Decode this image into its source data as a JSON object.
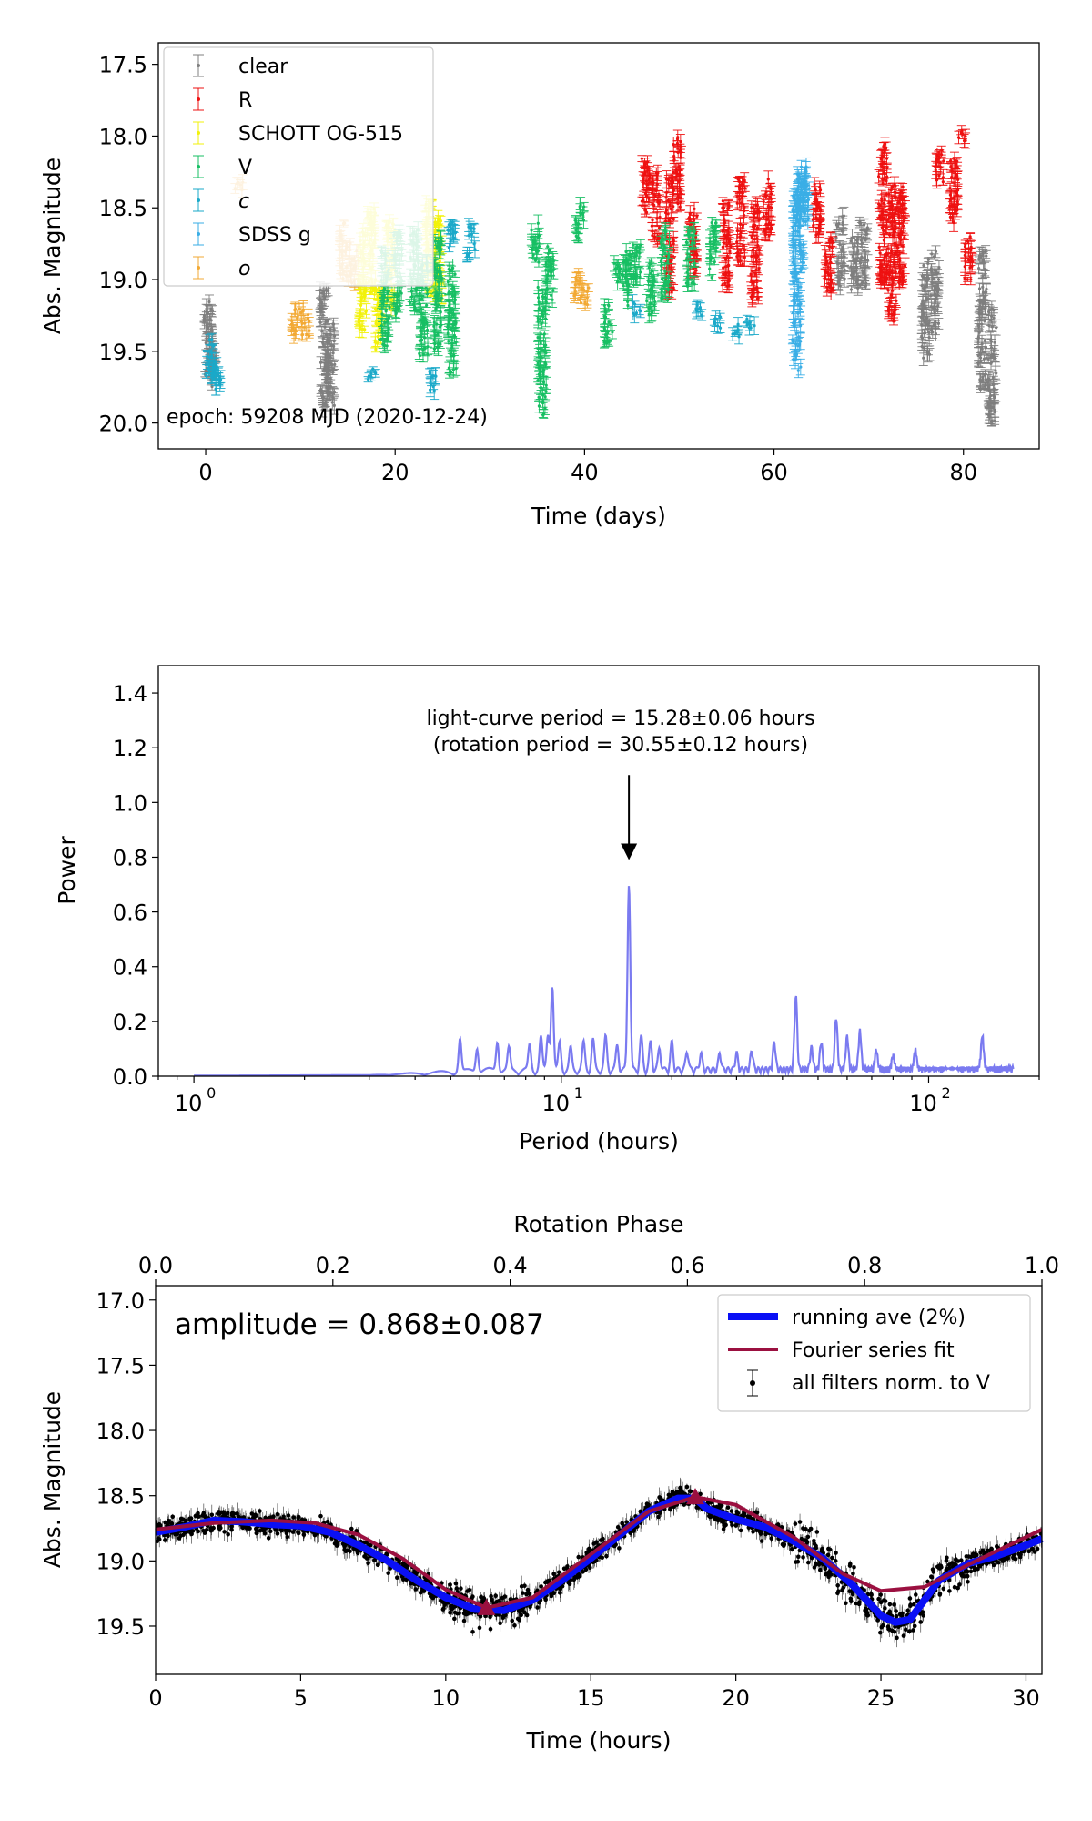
{
  "colors": {
    "clear": "#7f7f7f",
    "R": "#ee1111",
    "SCHOTT OG-515": "#f2f20a",
    "V": "#17bf63",
    "c": "#1aa9c9",
    "SDSS g": "#3aaee6",
    "o": "#f2a934",
    "periodogram": "#7a7af0",
    "running_ave": "#0a10f5",
    "fourier_fit": "#9b1040",
    "data": "#000000"
  },
  "chart_data": [
    {
      "type": "scatter",
      "xlabel": "Time (days)",
      "ylabel": "Abs. Magnitude",
      "xlim": [
        -5,
        88
      ],
      "ylim": [
        20.18,
        17.35
      ],
      "y_inverted": true,
      "xticks": [
        0,
        20,
        40,
        60,
        80
      ],
      "yticks": [
        17.5,
        18.0,
        18.5,
        19.0,
        19.5,
        20.0
      ],
      "annotation": "epoch: 59208 MJD (2020-12-24)",
      "legend_position": "upper-left",
      "series": [
        {
          "name": "clear",
          "clusters": [
            [
              0.3,
              19.4,
              0.3
            ],
            [
              0.8,
              19.6,
              0.15
            ],
            [
              12.5,
              19.5,
              0.45
            ],
            [
              13.2,
              19.6,
              0.3
            ],
            [
              67,
              18.8,
              0.25
            ],
            [
              68.5,
              18.9,
              0.2
            ],
            [
              69.5,
              18.85,
              0.25
            ],
            [
              76,
              19.2,
              0.35
            ],
            [
              77,
              19.1,
              0.3
            ],
            [
              82,
              19.3,
              0.5
            ],
            [
              83,
              19.6,
              0.4
            ]
          ]
        },
        {
          "name": "R",
          "clusters": [
            [
              46.5,
              18.35,
              0.2
            ],
            [
              47.5,
              18.5,
              0.25
            ],
            [
              49,
              18.7,
              0.4
            ],
            [
              49.8,
              18.25,
              0.25
            ],
            [
              51.5,
              18.75,
              0.25
            ],
            [
              55,
              18.75,
              0.3
            ],
            [
              56.5,
              18.6,
              0.3
            ],
            [
              58,
              18.8,
              0.35
            ],
            [
              59.3,
              18.5,
              0.2
            ],
            [
              64.5,
              18.5,
              0.2
            ],
            [
              65.8,
              18.9,
              0.2
            ],
            [
              71.5,
              18.55,
              0.5
            ],
            [
              72.5,
              18.8,
              0.5
            ],
            [
              73.5,
              18.7,
              0.35
            ],
            [
              77.5,
              18.2,
              0.12
            ],
            [
              79,
              18.4,
              0.25
            ],
            [
              80.5,
              18.85,
              0.15
            ],
            [
              79.8,
              18.0,
              0.05
            ]
          ]
        },
        {
          "name": "SCHOTT OG-515",
          "clusters": [
            [
              16.5,
              19.0,
              0.35
            ],
            [
              17.5,
              18.8,
              0.3
            ],
            [
              18.3,
              19.25,
              0.25
            ],
            [
              19.5,
              18.9,
              0.3
            ],
            [
              23.5,
              18.8,
              0.35
            ],
            [
              24.5,
              18.85,
              0.3
            ]
          ]
        },
        {
          "name": "V",
          "clusters": [
            [
              19,
              19.15,
              0.35
            ],
            [
              20.3,
              18.95,
              0.3
            ],
            [
              22,
              18.95,
              0.3
            ],
            [
              23,
              19.2,
              0.35
            ],
            [
              24.5,
              19.1,
              0.4
            ],
            [
              26,
              19.3,
              0.4
            ],
            [
              34.8,
              18.75,
              0.15
            ],
            [
              35.5,
              19.5,
              0.45
            ],
            [
              36.3,
              18.95,
              0.2
            ],
            [
              39.5,
              18.6,
              0.12
            ],
            [
              42.5,
              19.3,
              0.15
            ],
            [
              43.5,
              18.95,
              0.08
            ],
            [
              44.5,
              19.0,
              0.2
            ],
            [
              45.5,
              18.85,
              0.15
            ],
            [
              47,
              19.05,
              0.2
            ],
            [
              48.5,
              18.9,
              0.25
            ],
            [
              51.2,
              18.85,
              0.2
            ],
            [
              53.5,
              18.8,
              0.2
            ]
          ]
        },
        {
          "name": "c",
          "clusters": [
            [
              0.5,
              19.55,
              0.15
            ],
            [
              1.2,
              19.7,
              0.1
            ],
            [
              17.5,
              19.65,
              0.05
            ],
            [
              24,
              19.7,
              0.08
            ],
            [
              26,
              18.7,
              0.1
            ],
            [
              28,
              18.65,
              0.05
            ],
            [
              28,
              18.8,
              0.05
            ],
            [
              45.5,
              19.2,
              0.05
            ],
            [
              52,
              19.2,
              0.05
            ],
            [
              54,
              19.3,
              0.05
            ],
            [
              56,
              19.35,
              0.05
            ],
            [
              57.5,
              19.3,
              0.05
            ]
          ]
        },
        {
          "name": "SDSS g",
          "clusters": [
            [
              62.4,
              19.0,
              0.65
            ],
            [
              62.9,
              18.6,
              0.35
            ],
            [
              63.3,
              18.4,
              0.2
            ]
          ]
        },
        {
          "name": "o",
          "clusters": [
            [
              3.5,
              18.35,
              0.05
            ],
            [
              9.5,
              19.3,
              0.1
            ],
            [
              10.5,
              19.3,
              0.1
            ],
            [
              14.5,
              18.8,
              0.2
            ],
            [
              15.5,
              18.9,
              0.15
            ],
            [
              39.3,
              19.05,
              0.1
            ],
            [
              40,
              19.1,
              0.08
            ]
          ]
        }
      ]
    },
    {
      "type": "line",
      "xlabel": "Period (hours)",
      "ylabel": "Power",
      "xscale": "log",
      "xlim": [
        0.8,
        200
      ],
      "ylim": [
        0,
        1.5
      ],
      "xticks": [
        1,
        10,
        100
      ],
      "xtick_labels": [
        "10",
        "10",
        "10"
      ],
      "xtick_exponents": [
        "0",
        "1",
        "2"
      ],
      "yticks": [
        0.0,
        0.2,
        0.4,
        0.6,
        0.8,
        1.0,
        1.2,
        1.4
      ],
      "ytick_labels": [
        "0.0",
        "0.2",
        "0.4",
        "0.6",
        "0.8",
        "1.0",
        "1.2",
        "1.4"
      ],
      "annotation_line1": "light-curve period = 15.28±0.06 hours",
      "annotation_line2": "(rotation period = 30.55±0.12 hours)",
      "arrow_target": [
        15.28,
        0.79
      ],
      "arrow_tail_y": 1.1,
      "peaks": [
        [
          5.3,
          0.12
        ],
        [
          5.9,
          0.09
        ],
        [
          6.7,
          0.11
        ],
        [
          7.2,
          0.08
        ],
        [
          8.2,
          0.09
        ],
        [
          8.8,
          0.12
        ],
        [
          9.2,
          0.13
        ],
        [
          9.45,
          0.31
        ],
        [
          9.9,
          0.1
        ],
        [
          10.6,
          0.08
        ],
        [
          11.5,
          0.1
        ],
        [
          12.2,
          0.11
        ],
        [
          13.2,
          0.12
        ],
        [
          14.2,
          0.09
        ],
        [
          15.28,
          0.69
        ],
        [
          16.5,
          0.12
        ],
        [
          17.5,
          0.1
        ],
        [
          18.5,
          0.08
        ],
        [
          20,
          0.1
        ],
        [
          22,
          0.07
        ],
        [
          24,
          0.06
        ],
        [
          27,
          0.06
        ],
        [
          30,
          0.06
        ],
        [
          33,
          0.07
        ],
        [
          38,
          0.1
        ],
        [
          43.5,
          0.27
        ],
        [
          48,
          0.08
        ],
        [
          51,
          0.1
        ],
        [
          56,
          0.19
        ],
        [
          60,
          0.12
        ],
        [
          65,
          0.14
        ],
        [
          72,
          0.07
        ],
        [
          80,
          0.05
        ],
        [
          92,
          0.07
        ],
        [
          140,
          0.12
        ]
      ]
    },
    {
      "type": "line",
      "xlabel": "Time (hours)",
      "ylabel": "Abs. Magnitude",
      "top_xlabel": "Rotation Phase",
      "xlim": [
        0,
        30.55
      ],
      "ylim": [
        19.87,
        16.89
      ],
      "y_inverted": true,
      "xticks": [
        0,
        5,
        10,
        15,
        20,
        25,
        30
      ],
      "yticks": [
        17.0,
        17.5,
        18.0,
        18.5,
        19.0,
        19.5
      ],
      "top_ticks": [
        0.0,
        0.2,
        0.4,
        0.6,
        0.8,
        1.0
      ],
      "amplitude_text": "amplitude  = 0.868±0.087",
      "legend": [
        "running ave (2%)",
        "Fourier series fit",
        "all filters norm. to V"
      ],
      "legend_position": "upper-right",
      "fourier_fit": [
        [
          0,
          18.76
        ],
        [
          2,
          18.71
        ],
        [
          4,
          18.69
        ],
        [
          5.5,
          18.71
        ],
        [
          7,
          18.8
        ],
        [
          8.5,
          18.98
        ],
        [
          10,
          19.22
        ],
        [
          11.4,
          19.36
        ],
        [
          13,
          19.28
        ],
        [
          15,
          18.95
        ],
        [
          17,
          18.62
        ],
        [
          18.6,
          18.51
        ],
        [
          20,
          18.57
        ],
        [
          22,
          18.82
        ],
        [
          23.7,
          19.1
        ],
        [
          25,
          19.23
        ],
        [
          26.5,
          19.2
        ],
        [
          28,
          19.03
        ],
        [
          30.55,
          18.76
        ]
      ],
      "running_ave": [
        [
          0,
          18.78
        ],
        [
          1,
          18.74
        ],
        [
          2,
          18.69
        ],
        [
          3,
          18.7
        ],
        [
          4,
          18.72
        ],
        [
          5,
          18.73
        ],
        [
          6,
          18.78
        ],
        [
          7,
          18.88
        ],
        [
          8,
          19.0
        ],
        [
          9,
          19.15
        ],
        [
          10,
          19.28
        ],
        [
          11,
          19.37
        ],
        [
          12,
          19.38
        ],
        [
          13,
          19.3
        ],
        [
          14,
          19.15
        ],
        [
          15,
          18.98
        ],
        [
          16,
          18.8
        ],
        [
          17,
          18.62
        ],
        [
          18,
          18.52
        ],
        [
          18.6,
          18.52
        ],
        [
          19,
          18.6
        ],
        [
          20,
          18.68
        ],
        [
          21,
          18.74
        ],
        [
          22,
          18.85
        ],
        [
          23,
          18.98
        ],
        [
          24,
          19.18
        ],
        [
          25,
          19.42
        ],
        [
          25.5,
          19.47
        ],
        [
          26,
          19.45
        ],
        [
          26.5,
          19.3
        ],
        [
          27,
          19.15
        ],
        [
          28,
          19.02
        ],
        [
          29,
          18.96
        ],
        [
          30,
          18.88
        ],
        [
          30.55,
          18.83
        ]
      ],
      "markers": [
        [
          11.4,
          19.36
        ],
        [
          18.6,
          18.51
        ]
      ]
    }
  ]
}
